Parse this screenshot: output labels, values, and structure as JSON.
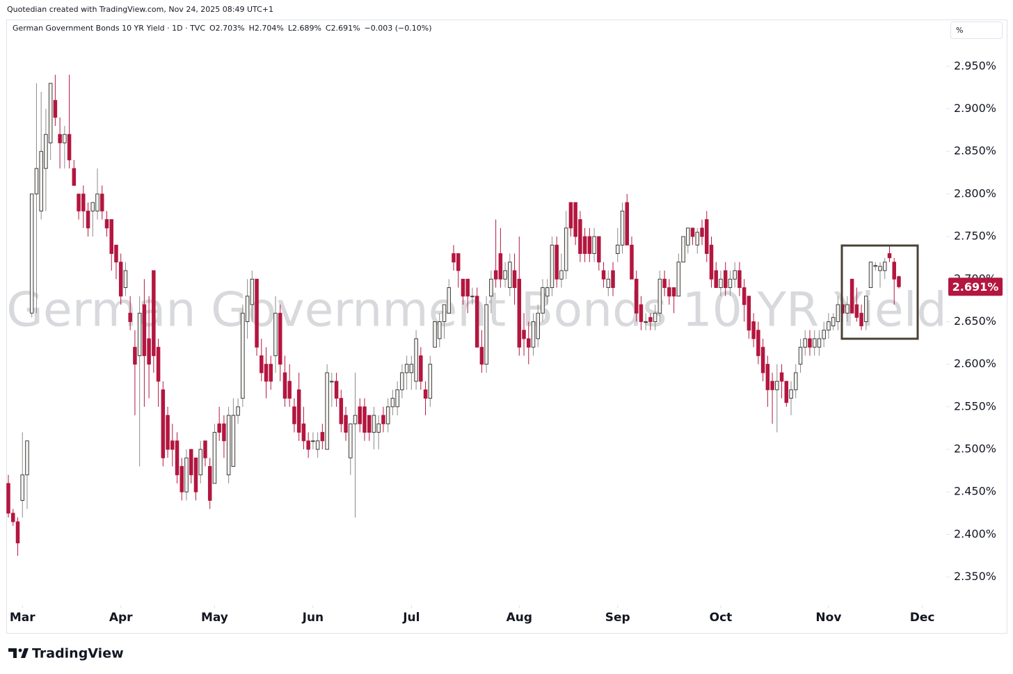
{
  "header": {
    "credit": "Quotedian created with TradingView.com, Nov 24, 2025 08:49 UTC+1",
    "symbol": "German Government Bonds 10 YR Yield · 1D · TVC",
    "open": "O2.703%",
    "high": "H2.704%",
    "low": "L2.689%",
    "close": "C2.691%",
    "change": "−0.003 (−0.10%)",
    "unit": "%"
  },
  "footer": {
    "brand": "TradingView"
  },
  "chart_data": {
    "type": "candlestick",
    "watermark": "German Government Bonds 10 YR Yield",
    "up_color": "#f3f1ee",
    "down_color": "#b3163f",
    "xlim": [
      -0.3,
      200.1
    ],
    "xticks": [
      {
        "value": 3,
        "label": "Mar"
      },
      {
        "value": 24,
        "label": "Apr"
      },
      {
        "value": 44,
        "label": "May"
      },
      {
        "value": 65,
        "label": "Jun"
      },
      {
        "value": 86,
        "label": "Jul"
      },
      {
        "value": 109,
        "label": "Aug"
      },
      {
        "value": 130,
        "label": "Sep"
      },
      {
        "value": 152,
        "label": "Oct"
      },
      {
        "value": 175,
        "label": "Nov"
      },
      {
        "value": 195,
        "label": "Dec"
      }
    ],
    "ylim": [
      2.317,
      3.005
    ],
    "yticks": [
      {
        "value": 2.35,
        "label": "2.350%"
      },
      {
        "value": 2.4,
        "label": "2.400%"
      },
      {
        "value": 2.45,
        "label": "2.450%"
      },
      {
        "value": 2.5,
        "label": "2.500%"
      },
      {
        "value": 2.55,
        "label": "2.550%"
      },
      {
        "value": 2.6,
        "label": "2.600%"
      },
      {
        "value": 2.65,
        "label": "2.650%"
      },
      {
        "value": 2.7,
        "label": "2.700%"
      },
      {
        "value": 2.75,
        "label": "2.750%"
      },
      {
        "value": 2.8,
        "label": "2.800%"
      },
      {
        "value": 2.85,
        "label": "2.850%"
      },
      {
        "value": 2.9,
        "label": "2.900%"
      },
      {
        "value": 2.95,
        "label": "2.950%"
      }
    ],
    "last_price": {
      "value": 2.691,
      "label": "2.691%"
    },
    "open": [
      2.46,
      2.425,
      2.415,
      2.44,
      2.47,
      2.66,
      2.8,
      2.78,
      2.83,
      2.86,
      2.91,
      2.87,
      2.86,
      2.87,
      2.83,
      2.8,
      2.8,
      2.78,
      2.78,
      2.78,
      2.8,
      2.77,
      2.77,
      2.74,
      2.72,
      2.69,
      2.66,
      2.62,
      2.61,
      2.67,
      2.63,
      2.71,
      2.62,
      2.57,
      2.54,
      2.51,
      2.51,
      2.48,
      2.45,
      2.5,
      2.49,
      2.47,
      2.51,
      2.48,
      2.46,
      2.53,
      2.53,
      2.47,
      2.48,
      2.54,
      2.56,
      2.65,
      2.67,
      2.7,
      2.61,
      2.6,
      2.6,
      2.61,
      2.66,
      2.59,
      2.58,
      2.55,
      2.57,
      2.53,
      2.51,
      2.51,
      2.5,
      2.52,
      2.5,
      2.58,
      2.58,
      2.56,
      2.54,
      2.49,
      2.53,
      2.55,
      2.55,
      2.54,
      2.52,
      2.52,
      2.54,
      2.53,
      2.55,
      2.55,
      2.57,
      2.59,
      2.59,
      2.58,
      2.61,
      2.57,
      2.56,
      2.62,
      2.63,
      2.65,
      2.66,
      2.73,
      2.73,
      2.7,
      2.7,
      2.68,
      2.68,
      2.62,
      2.6,
      2.68,
      2.71,
      2.73,
      2.7,
      2.69,
      2.71,
      2.7,
      2.64,
      2.63,
      2.62,
      2.63,
      2.66,
      2.68,
      2.69,
      2.74,
      2.7,
      2.71,
      2.79,
      2.79,
      2.77,
      2.75,
      2.75,
      2.73,
      2.75,
      2.71,
      2.69,
      2.71,
      2.73,
      2.74,
      2.79,
      2.74,
      2.7,
      2.67,
      2.65,
      2.655,
      2.65,
      2.66,
      2.7,
      2.69,
      2.69,
      2.68,
      2.72,
      2.74,
      2.76,
      2.74,
      2.76,
      2.77,
      2.74,
      2.71,
      2.69,
      2.71,
      2.69,
      2.7,
      2.71,
      2.69,
      2.68,
      2.65,
      2.64,
      2.62,
      2.6,
      2.58,
      2.57,
      2.59,
      2.58,
      2.56,
      2.57,
      2.6,
      2.62,
      2.63,
      2.62,
      2.62,
      2.63,
      2.64,
      2.645,
      2.65,
      2.67,
      2.66,
      2.7,
      2.67,
      2.66,
      2.65,
      2.69,
      2.715,
      2.71,
      2.71,
      2.73,
      2.72,
      2.703
    ],
    "high": [
      2.47,
      2.43,
      2.42,
      2.52,
      2.51,
      2.8,
      2.93,
      2.92,
      2.9,
      2.93,
      2.94,
      2.89,
      2.88,
      2.94,
      2.84,
      2.8,
      2.81,
      2.79,
      2.79,
      2.83,
      2.81,
      2.78,
      2.77,
      2.74,
      2.73,
      2.72,
      2.68,
      2.64,
      2.68,
      2.7,
      2.68,
      2.71,
      2.63,
      2.58,
      2.55,
      2.53,
      2.52,
      2.49,
      2.5,
      2.5,
      2.49,
      2.51,
      2.51,
      2.49,
      2.53,
      2.55,
      2.54,
      2.55,
      2.56,
      2.56,
      2.67,
      2.7,
      2.71,
      2.7,
      2.63,
      2.62,
      2.61,
      2.68,
      2.67,
      2.61,
      2.6,
      2.56,
      2.59,
      2.55,
      2.52,
      2.52,
      2.52,
      2.53,
      2.6,
      2.59,
      2.59,
      2.57,
      2.55,
      2.53,
      2.59,
      2.56,
      2.56,
      2.54,
      2.55,
      2.54,
      2.55,
      2.56,
      2.57,
      2.58,
      2.6,
      2.61,
      2.61,
      2.64,
      2.62,
      2.58,
      2.61,
      2.65,
      2.66,
      2.67,
      2.7,
      2.74,
      2.73,
      2.7,
      2.7,
      2.69,
      2.69,
      2.64,
      2.68,
      2.71,
      2.77,
      2.76,
      2.72,
      2.73,
      2.73,
      2.75,
      2.66,
      2.65,
      2.66,
      2.67,
      2.7,
      2.7,
      2.75,
      2.75,
      2.73,
      2.78,
      2.79,
      2.79,
      2.78,
      2.76,
      2.76,
      2.76,
      2.75,
      2.72,
      2.71,
      2.72,
      2.76,
      2.79,
      2.8,
      2.75,
      2.71,
      2.68,
      2.66,
      2.66,
      2.67,
      2.71,
      2.71,
      2.7,
      2.69,
      2.73,
      2.75,
      2.76,
      2.76,
      2.76,
      2.77,
      2.78,
      2.75,
      2.72,
      2.71,
      2.72,
      2.71,
      2.72,
      2.72,
      2.7,
      2.68,
      2.66,
      2.65,
      2.63,
      2.61,
      2.59,
      2.6,
      2.6,
      2.58,
      2.58,
      2.6,
      2.63,
      2.64,
      2.64,
      2.64,
      2.64,
      2.65,
      2.66,
      2.66,
      2.68,
      2.68,
      2.68,
      2.7,
      2.69,
      2.67,
      2.68,
      2.72,
      2.72,
      2.72,
      2.725,
      2.74,
      2.725,
      2.704
    ],
    "low": [
      2.42,
      2.41,
      2.375,
      2.42,
      2.43,
      2.655,
      2.66,
      2.77,
      2.78,
      2.84,
      2.88,
      2.83,
      2.83,
      2.83,
      2.81,
      2.77,
      2.76,
      2.75,
      2.75,
      2.77,
      2.77,
      2.75,
      2.71,
      2.7,
      2.67,
      2.68,
      2.64,
      2.54,
      2.48,
      2.55,
      2.56,
      2.59,
      2.55,
      2.48,
      2.49,
      2.48,
      2.46,
      2.44,
      2.44,
      2.46,
      2.44,
      2.46,
      2.48,
      2.43,
      2.46,
      2.51,
      2.49,
      2.46,
      2.48,
      2.53,
      2.55,
      2.63,
      2.65,
      2.61,
      2.58,
      2.56,
      2.57,
      2.59,
      2.58,
      2.55,
      2.55,
      2.52,
      2.51,
      2.5,
      2.49,
      2.5,
      2.49,
      2.5,
      2.5,
      2.55,
      2.55,
      2.52,
      2.51,
      2.47,
      2.42,
      2.52,
      2.51,
      2.51,
      2.5,
      2.5,
      2.52,
      2.52,
      2.54,
      2.54,
      2.56,
      2.57,
      2.57,
      2.57,
      2.57,
      2.54,
      2.55,
      2.62,
      2.62,
      2.63,
      2.66,
      2.71,
      2.69,
      2.67,
      2.66,
      2.67,
      2.62,
      2.59,
      2.59,
      2.66,
      2.69,
      2.69,
      2.69,
      2.68,
      2.67,
      2.61,
      2.61,
      2.6,
      2.61,
      2.62,
      2.65,
      2.67,
      2.68,
      2.69,
      2.69,
      2.7,
      2.75,
      2.74,
      2.72,
      2.72,
      2.72,
      2.72,
      2.71,
      2.69,
      2.68,
      2.68,
      2.72,
      2.73,
      2.74,
      2.7,
      2.65,
      2.64,
      2.64,
      2.64,
      2.64,
      2.65,
      2.68,
      2.67,
      2.66,
      2.68,
      2.72,
      2.73,
      2.74,
      2.73,
      2.74,
      2.72,
      2.69,
      2.69,
      2.68,
      2.68,
      2.68,
      2.69,
      2.68,
      2.65,
      2.63,
      2.62,
      2.6,
      2.58,
      2.55,
      2.53,
      2.52,
      2.56,
      2.55,
      2.54,
      2.56,
      2.59,
      2.61,
      2.61,
      2.61,
      2.61,
      2.62,
      2.63,
      2.64,
      2.64,
      2.65,
      2.65,
      2.66,
      2.65,
      2.64,
      2.64,
      2.69,
      2.71,
      2.69,
      2.7,
      2.72,
      2.67,
      2.689
    ],
    "close": [
      2.425,
      2.415,
      2.39,
      2.47,
      2.51,
      2.8,
      2.83,
      2.85,
      2.87,
      2.93,
      2.89,
      2.86,
      2.87,
      2.84,
      2.81,
      2.78,
      2.78,
      2.76,
      2.79,
      2.8,
      2.78,
      2.76,
      2.73,
      2.72,
      2.68,
      2.71,
      2.65,
      2.6,
      2.66,
      2.61,
      2.6,
      2.61,
      2.58,
      2.49,
      2.5,
      2.5,
      2.47,
      2.45,
      2.49,
      2.47,
      2.45,
      2.5,
      2.49,
      2.44,
      2.52,
      2.52,
      2.51,
      2.54,
      2.54,
      2.55,
      2.66,
      2.68,
      2.7,
      2.62,
      2.59,
      2.58,
      2.58,
      2.66,
      2.6,
      2.56,
      2.56,
      2.53,
      2.52,
      2.51,
      2.5,
      2.51,
      2.51,
      2.51,
      2.59,
      2.58,
      2.56,
      2.53,
      2.52,
      2.53,
      2.54,
      2.53,
      2.52,
      2.52,
      2.54,
      2.53,
      2.53,
      2.55,
      2.56,
      2.57,
      2.59,
      2.6,
      2.6,
      2.63,
      2.58,
      2.56,
      2.6,
      2.65,
      2.65,
      2.67,
      2.69,
      2.72,
      2.71,
      2.68,
      2.68,
      2.68,
      2.62,
      2.6,
      2.67,
      2.7,
      2.7,
      2.7,
      2.71,
      2.72,
      2.69,
      2.62,
      2.63,
      2.62,
      2.65,
      2.66,
      2.69,
      2.69,
      2.74,
      2.7,
      2.71,
      2.76,
      2.76,
      2.75,
      2.73,
      2.73,
      2.73,
      2.75,
      2.72,
      2.7,
      2.7,
      2.69,
      2.74,
      2.78,
      2.74,
      2.7,
      2.66,
      2.65,
      2.65,
      2.65,
      2.66,
      2.7,
      2.69,
      2.68,
      2.68,
      2.72,
      2.75,
      2.76,
      2.75,
      2.755,
      2.75,
      2.73,
      2.7,
      2.69,
      2.7,
      2.69,
      2.7,
      2.71,
      2.69,
      2.67,
      2.64,
      2.63,
      2.61,
      2.59,
      2.57,
      2.57,
      2.58,
      2.58,
      2.555,
      2.57,
      2.59,
      2.62,
      2.63,
      2.62,
      2.63,
      2.63,
      2.64,
      2.65,
      2.655,
      2.67,
      2.66,
      2.67,
      2.66,
      2.655,
      2.645,
      2.68,
      2.72,
      2.716,
      2.715,
      2.72,
      2.725,
      2.7,
      2.691
    ]
  }
}
